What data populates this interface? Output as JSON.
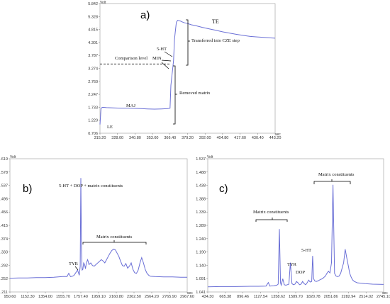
{
  "chart_data": [
    {
      "id": "a",
      "type": "line",
      "panel_label": "a)",
      "y_unit": "Volt",
      "x_unit": "sec",
      "xlim": [
        315.2,
        443.2
      ],
      "ylim": [
        0.706,
        5.842
      ],
      "x_ticks": [
        "315.20",
        "328.00",
        "340.80",
        "353.60",
        "366.40",
        "379.20",
        "392.00",
        "404.80",
        "417.60",
        "430.40",
        "443.20"
      ],
      "y_ticks": [
        "0.706",
        "1.220",
        "1.733",
        "2.247",
        "2.760",
        "3.274",
        "3.787",
        "4.301",
        "4.815",
        "5.328",
        "5.842"
      ],
      "x": [
        315.2,
        316,
        317,
        318,
        320,
        325,
        330,
        335,
        340,
        345,
        350,
        355,
        360,
        365,
        366.4,
        367,
        367.8,
        368.4,
        369,
        369.6,
        370.2,
        371,
        372,
        373,
        374,
        375,
        377,
        379.2,
        382,
        385,
        390,
        395,
        400,
        405,
        410,
        415,
        420,
        425,
        430,
        435,
        440,
        443.2
      ],
      "y": [
        1.05,
        1.7,
        1.73,
        1.73,
        1.72,
        1.71,
        1.7,
        1.7,
        1.69,
        1.68,
        1.67,
        1.66,
        1.67,
        1.68,
        1.7,
        2.6,
        3.0,
        3.3,
        3.6,
        4.4,
        4.7,
        5.1,
        5.18,
        5.16,
        5.15,
        5.12,
        5.08,
        5.05,
        5.0,
        4.97,
        4.9,
        4.84,
        4.78,
        4.72,
        4.67,
        4.62,
        4.58,
        4.54,
        4.52,
        4.5,
        4.48,
        4.47
      ],
      "annotations": {
        "te": "TE",
        "transferred": "Transferred into CZE step",
        "five_ht": "5-HT",
        "min": "MIN",
        "comparison": "Comparison level",
        "maj": "MAJ",
        "removed": "Removed matrix",
        "le": "LE"
      },
      "comparison_level_y": 3.45
    },
    {
      "id": "b",
      "type": "line",
      "panel_label": "b)",
      "y_unit": "Volt",
      "x_unit": "sec",
      "xlim": [
        950.6,
        2967.6
      ],
      "ylim": [
        1.211,
        1.619
      ],
      "x_ticks": [
        "950.60",
        "1152.30",
        "1354.00",
        "1555.70",
        "1757.40",
        "1959.10",
        "2160.80",
        "2362.50",
        "2564.20",
        "2765.90",
        "2967.60"
      ],
      "y_ticks": [
        "1.211",
        "1.252",
        "1.292",
        "1.333",
        "1.374",
        "1.415",
        "1.456",
        "1.496",
        "1.537",
        "1.578",
        "1.619"
      ],
      "x": [
        950.6,
        1050,
        1150,
        1250,
        1350,
        1450,
        1550,
        1600,
        1620,
        1640,
        1660,
        1680,
        1700,
        1720,
        1740,
        1750,
        1757,
        1765,
        1772,
        1780,
        1790,
        1800,
        1810,
        1820,
        1835,
        1850,
        1870,
        1890,
        1910,
        1930,
        1950,
        1970,
        1990,
        2010,
        2030,
        2050,
        2070,
        2090,
        2110,
        2130,
        2150,
        2170,
        2190,
        2210,
        2230,
        2250,
        2270,
        2290,
        2310,
        2330,
        2350,
        2370,
        2390,
        2410,
        2430,
        2450,
        2470,
        2490,
        2510,
        2530,
        2550,
        2600,
        2700,
        2800,
        2900,
        2967.6
      ],
      "y": [
        1.253,
        1.254,
        1.254,
        1.255,
        1.255,
        1.256,
        1.258,
        1.258,
        1.268,
        1.258,
        1.259,
        1.262,
        1.27,
        1.278,
        1.262,
        1.29,
        1.56,
        1.34,
        1.278,
        1.28,
        1.3,
        1.295,
        1.282,
        1.3,
        1.31,
        1.295,
        1.3,
        1.292,
        1.29,
        1.295,
        1.3,
        1.305,
        1.31,
        1.306,
        1.3,
        1.31,
        1.32,
        1.33,
        1.338,
        1.342,
        1.34,
        1.33,
        1.32,
        1.305,
        1.292,
        1.29,
        1.298,
        1.284,
        1.29,
        1.3,
        1.28,
        1.27,
        1.268,
        1.278,
        1.3,
        1.316,
        1.3,
        1.28,
        1.268,
        1.262,
        1.259,
        1.258,
        1.257,
        1.257,
        1.256,
        1.256
      ],
      "annotations": {
        "main": "5-HT + DOP + matrix constituents",
        "tyr": "TYR",
        "matrix": "Matrix constituents"
      }
    },
    {
      "id": "c",
      "type": "line",
      "panel_label": "c)",
      "y_unit": "Volt",
      "x_unit": "sec",
      "xlim": [
        434.3,
        2745.1
      ],
      "ylim": [
        1.041,
        1.537
      ],
      "x_ticks": [
        "434.30",
        "665.38",
        "896.46",
        "1127.54",
        "1358.62",
        "1589.70",
        "1820.78",
        "2051.86",
        "2282.94",
        "2514.02",
        "2745.10"
      ],
      "y_ticks": [
        "1.041",
        "1.091",
        "1.140",
        "1.190",
        "1.240",
        "1.289",
        "1.339",
        "1.388",
        "1.438",
        "1.488",
        "1.537"
      ],
      "x": [
        434.3,
        600,
        800,
        1000,
        1100,
        1200,
        1230,
        1250,
        1300,
        1340,
        1360,
        1375,
        1390,
        1400,
        1420,
        1440,
        1460,
        1480,
        1500,
        1520,
        1540,
        1560,
        1580,
        1600,
        1620,
        1640,
        1660,
        1680,
        1700,
        1720,
        1740,
        1760,
        1780,
        1800,
        1812,
        1825,
        1840,
        1860,
        1880,
        1900,
        1920,
        1940,
        1960,
        1980,
        2000,
        2020,
        2040,
        2060,
        2080,
        2100,
        2120,
        2140,
        2160,
        2180,
        2200,
        2220,
        2240,
        2260,
        2280,
        2300,
        2320,
        2340,
        2360,
        2400,
        2500,
        2600,
        2745.1
      ],
      "y": [
        1.06,
        1.061,
        1.061,
        1.062,
        1.062,
        1.063,
        1.076,
        1.063,
        1.064,
        1.066,
        1.07,
        1.275,
        1.075,
        1.066,
        1.09,
        1.068,
        1.066,
        1.068,
        1.07,
        1.15,
        1.072,
        1.068,
        1.07,
        1.08,
        1.075,
        1.068,
        1.07,
        1.08,
        1.072,
        1.068,
        1.075,
        1.085,
        1.078,
        1.08,
        1.175,
        1.09,
        1.082,
        1.08,
        1.082,
        1.085,
        1.088,
        1.09,
        1.095,
        1.1,
        1.11,
        1.118,
        1.112,
        1.15,
        1.44,
        1.11,
        1.1,
        1.098,
        1.1,
        1.11,
        1.13,
        1.15,
        1.2,
        1.17,
        1.14,
        1.11,
        1.095,
        1.085,
        1.08,
        1.075,
        1.072,
        1.07,
        1.069
      ],
      "annotations": {
        "matrix_left": "Matrix constituents",
        "matrix_right": "Matrix constituents",
        "tyr": "TYR",
        "dop": "DOP",
        "five_ht": "5-HT"
      }
    }
  ]
}
